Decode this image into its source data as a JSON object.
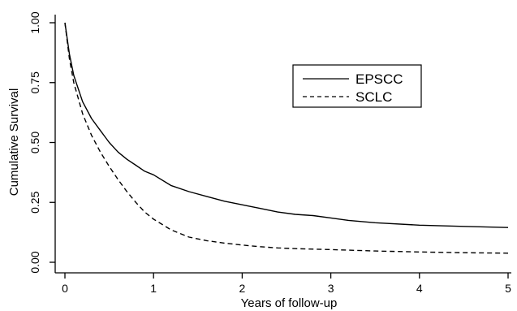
{
  "chart_data": {
    "type": "line",
    "title": "",
    "xlabel": "Years of follow-up",
    "ylabel": "Cumulative Survival",
    "xlim": [
      0,
      5
    ],
    "ylim": [
      0,
      1
    ],
    "x_ticks": [
      0,
      1,
      2,
      3,
      4,
      5
    ],
    "x_tick_labels": [
      "0",
      "1",
      "2",
      "3",
      "4",
      "5"
    ],
    "y_ticks": [
      0,
      0.25,
      0.5,
      0.75,
      1
    ],
    "y_tick_labels": [
      "0.00",
      "0.25",
      "0.50",
      "0.75",
      "1.00"
    ],
    "grid": false,
    "legend_position": "upper-right",
    "series": [
      {
        "name": "EPSCC",
        "line_style": "solid",
        "color": "#000000",
        "x": [
          0,
          0.05,
          0.1,
          0.2,
          0.3,
          0.4,
          0.5,
          0.6,
          0.7,
          0.8,
          0.9,
          1.0,
          1.2,
          1.4,
          1.6,
          1.8,
          2.0,
          2.2,
          2.4,
          2.6,
          2.8,
          3.0,
          3.2,
          3.5,
          4.0,
          4.5,
          5.0
        ],
        "y": [
          1.0,
          0.87,
          0.78,
          0.67,
          0.6,
          0.55,
          0.5,
          0.46,
          0.43,
          0.405,
          0.38,
          0.365,
          0.32,
          0.295,
          0.275,
          0.255,
          0.24,
          0.225,
          0.21,
          0.2,
          0.195,
          0.185,
          0.175,
          0.165,
          0.155,
          0.15,
          0.145
        ]
      },
      {
        "name": "SCLC",
        "line_style": "dashed",
        "color": "#000000",
        "x": [
          0,
          0.05,
          0.1,
          0.2,
          0.3,
          0.4,
          0.5,
          0.6,
          0.7,
          0.8,
          0.9,
          1.0,
          1.2,
          1.4,
          1.6,
          1.8,
          2.0,
          2.2,
          2.4,
          2.6,
          2.8,
          3.0,
          3.5,
          4.0,
          4.5,
          5.0
        ],
        "y": [
          1.0,
          0.85,
          0.75,
          0.62,
          0.53,
          0.46,
          0.4,
          0.345,
          0.295,
          0.25,
          0.21,
          0.18,
          0.135,
          0.105,
          0.09,
          0.08,
          0.072,
          0.065,
          0.06,
          0.057,
          0.055,
          0.053,
          0.047,
          0.043,
          0.04,
          0.038
        ]
      }
    ]
  }
}
